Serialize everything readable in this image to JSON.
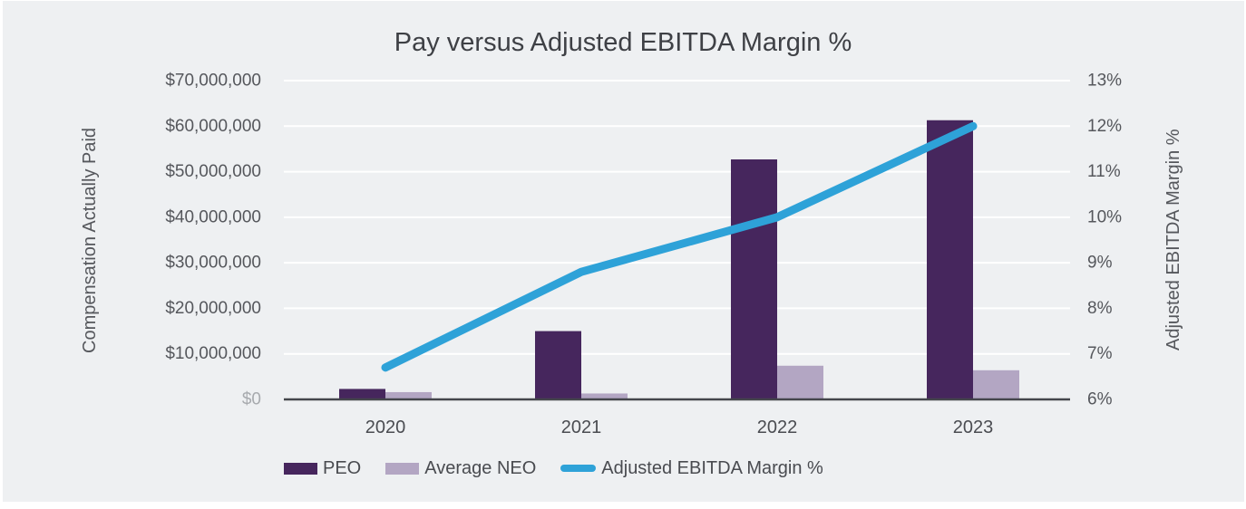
{
  "title": "Pay versus Adjusted EBITDA Margin %",
  "left_axis": {
    "title": "Compensation Actually Paid",
    "ticks": [
      "$70,000,000",
      "$60,000,000",
      "$50,000,000",
      "$40,000,000",
      "$30,000,000",
      "$20,000,000",
      "$10,000,000",
      "$0"
    ]
  },
  "right_axis": {
    "title": "Adjusted EBITDA Margin %",
    "ticks": [
      "13%",
      "12%",
      "11%",
      "10%",
      "9%",
      "8%",
      "7%",
      "6%"
    ]
  },
  "x_axis": {
    "categories": [
      "2020",
      "2021",
      "2022",
      "2023"
    ]
  },
  "legend": {
    "items": [
      {
        "label": "PEO",
        "color": "#46265d",
        "swatch": "rect"
      },
      {
        "label": "Average NEO",
        "color": "#b3a6c3",
        "swatch": "rect"
      },
      {
        "label": "Adjusted EBITDA Margin %",
        "color": "#2ea2d8",
        "swatch": "line"
      }
    ]
  },
  "colors": {
    "page": "#ffffff",
    "panel_background": "#eef0f2",
    "gridline": "#ffffff",
    "axis_line": "#44464c",
    "tick_text": "#55575c",
    "zero_tick_text": "#a7aaae",
    "title_text": "#3e4045",
    "peo_bar": "#46265d",
    "neo_bar": "#b3a6c3",
    "ebitda_line": "#2ea2d8"
  },
  "chart_data": {
    "type": "combo bar+line",
    "title": "Pay versus Adjusted EBITDA Margin %",
    "categories": [
      "2020",
      "2021",
      "2022",
      "2023"
    ],
    "series": [
      {
        "name": "PEO",
        "type": "bar",
        "axis": "left",
        "color": "#46265d",
        "values": [
          2300000,
          15000000,
          52700000,
          61300000
        ]
      },
      {
        "name": "Average NEO",
        "type": "bar",
        "axis": "left",
        "color": "#b3a6c3",
        "values": [
          1600000,
          1300000,
          7400000,
          6400000
        ]
      },
      {
        "name": "Adjusted EBITDA Margin %",
        "type": "line",
        "axis": "right",
        "color": "#2ea2d8",
        "values": [
          6.7,
          8.8,
          10.0,
          12.0
        ]
      }
    ],
    "left_axis_label": "Compensation Actually Paid",
    "left_ylim": [
      0,
      70000000
    ],
    "left_tick_step": 10000000,
    "right_axis_label": "Adjusted EBITDA Margin %",
    "right_ylim_percent": [
      6,
      13
    ],
    "right_tick_step_percent": 1,
    "grid": "horizontal white gridlines",
    "legend_position": "bottom"
  }
}
